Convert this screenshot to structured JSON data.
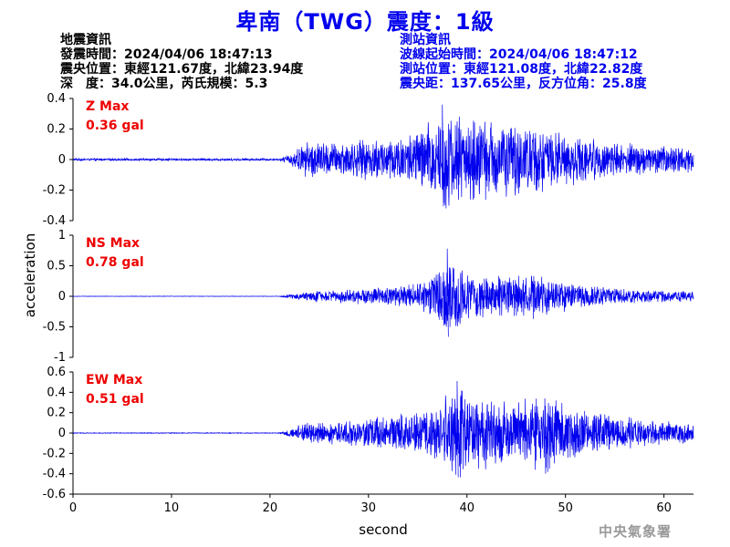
{
  "title": "卑南（TWG）震度：1級",
  "quake_info": {
    "heading": "地震資訊",
    "lines": [
      "發震時間：2024/04/06 18:47:13",
      "震央位置：東經121.67度，北緯23.94度",
      "深　度：34.0公里，芮氏規模：5.3"
    ]
  },
  "station_info": {
    "heading": "測站資訊",
    "lines": [
      "波線起始時間：2024/04/06 18:47:12",
      "測站位置：東經121.08度，北緯22.82度",
      "震央距：137.65公里，反方位角：25.8度"
    ]
  },
  "watermark": "中央氣象署",
  "colors": {
    "title": "#0000ee",
    "trace": "#0000ee",
    "max_label": "#ee0000",
    "axis": "#000000"
  },
  "chart_data": {
    "type": "line",
    "xlabel": "second",
    "ylabel": "acceleration",
    "xlim": [
      0,
      63
    ],
    "x_ticks": [
      0,
      10,
      20,
      30,
      40,
      50,
      60
    ],
    "x_tick_labels": [
      "0",
      "10",
      "20",
      "30",
      "40",
      "50",
      "60"
    ],
    "panels": [
      {
        "component": "Z",
        "max_label": "Z Max",
        "max_value": "0.36 gal",
        "ylim": [
          -0.4,
          0.4
        ],
        "y_ticks": [
          -0.4,
          -0.2,
          0,
          0.2,
          0.4
        ],
        "y_tick_labels": [
          "-0.4",
          "-0.2",
          "0",
          "0.2",
          "0.4"
        ],
        "peak_abs": 0.36,
        "noise_floor": 0.008,
        "envelope": [
          [
            0,
            0.008
          ],
          [
            21,
            0.008
          ],
          [
            22,
            0.04
          ],
          [
            24,
            0.14
          ],
          [
            26,
            0.12
          ],
          [
            30,
            0.14
          ],
          [
            34,
            0.18
          ],
          [
            36,
            0.26
          ],
          [
            37.5,
            0.36
          ],
          [
            40,
            0.3
          ],
          [
            43,
            0.28
          ],
          [
            45,
            0.25
          ],
          [
            47,
            0.24
          ],
          [
            50,
            0.18
          ],
          [
            55,
            0.12
          ],
          [
            60,
            0.1
          ],
          [
            63,
            0.09
          ]
        ]
      },
      {
        "component": "NS",
        "max_label": "NS Max",
        "max_value": "0.78 gal",
        "ylim": [
          -1,
          1
        ],
        "y_ticks": [
          -1,
          -0.5,
          0,
          0.5,
          1
        ],
        "y_tick_labels": [
          "-1",
          "-0.5",
          "0",
          "0.5",
          "1"
        ],
        "peak_abs": 0.78,
        "noise_floor": 0.004,
        "envelope": [
          [
            0,
            0.004
          ],
          [
            21,
            0.004
          ],
          [
            22,
            0.04
          ],
          [
            25,
            0.1
          ],
          [
            28,
            0.13
          ],
          [
            32,
            0.16
          ],
          [
            35,
            0.22
          ],
          [
            37,
            0.45
          ],
          [
            38,
            0.78
          ],
          [
            40,
            0.45
          ],
          [
            43,
            0.35
          ],
          [
            45,
            0.36
          ],
          [
            47,
            0.4
          ],
          [
            49,
            0.3
          ],
          [
            52,
            0.22
          ],
          [
            55,
            0.14
          ],
          [
            60,
            0.1
          ],
          [
            63,
            0.1
          ]
        ]
      },
      {
        "component": "EW",
        "max_label": "EW Max",
        "max_value": "0.51 gal",
        "ylim": [
          -0.6,
          0.6
        ],
        "y_ticks": [
          -0.6,
          -0.4,
          -0.2,
          0,
          0.2,
          0.4,
          0.6
        ],
        "y_tick_labels": [
          "-0.6",
          "-0.4",
          "-0.2",
          "0",
          "0.2",
          "0.4",
          "0.6"
        ],
        "peak_abs": 0.51,
        "noise_floor": 0.004,
        "envelope": [
          [
            0,
            0.004
          ],
          [
            21,
            0.004
          ],
          [
            22,
            0.05
          ],
          [
            24,
            0.12
          ],
          [
            27,
            0.12
          ],
          [
            30,
            0.16
          ],
          [
            34,
            0.2
          ],
          [
            37,
            0.3
          ],
          [
            39,
            0.51
          ],
          [
            41,
            0.38
          ],
          [
            45,
            0.35
          ],
          [
            48,
            0.42
          ],
          [
            50,
            0.3
          ],
          [
            53,
            0.22
          ],
          [
            57,
            0.16
          ],
          [
            60,
            0.12
          ],
          [
            63,
            0.11
          ]
        ]
      }
    ]
  }
}
